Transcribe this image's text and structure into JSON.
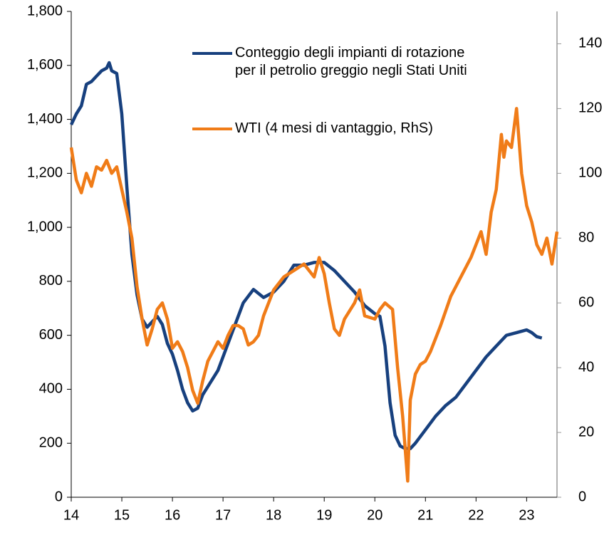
{
  "chart_data": {
    "type": "line",
    "xlim": [
      14,
      23.6
    ],
    "xticks": [
      14,
      15,
      16,
      17,
      18,
      19,
      20,
      21,
      22,
      23
    ],
    "ylim": [
      0,
      1800
    ],
    "yticks": [
      0,
      200,
      400,
      600,
      800,
      {
        "value": 1000,
        "label": "1,000"
      },
      {
        "value": 1200,
        "label": "1,200"
      },
      {
        "value": 1400,
        "label": "1,400"
      },
      {
        "value": 1600,
        "label": "1,600"
      },
      {
        "value": 1800,
        "label": "1,800"
      }
    ],
    "y2lim": [
      0,
      150
    ],
    "y2ticks": [
      0,
      20,
      40,
      60,
      80,
      100,
      120,
      140
    ],
    "legend": "top",
    "series": [
      {
        "name": "Conteggio degli impianti di rotazione per il petrolio greggio negli Stati Uniti",
        "color": "#17407e",
        "x": [
          14.0,
          14.1,
          14.2,
          14.3,
          14.4,
          14.5,
          14.6,
          14.7,
          14.75,
          14.8,
          14.9,
          15.0,
          15.1,
          15.2,
          15.3,
          15.4,
          15.5,
          15.6,
          15.7,
          15.8,
          15.9,
          16.0,
          16.1,
          16.2,
          16.3,
          16.4,
          16.5,
          16.6,
          16.7,
          16.8,
          16.9,
          17.0,
          17.2,
          17.4,
          17.6,
          17.8,
          18.0,
          18.2,
          18.4,
          18.6,
          18.8,
          19.0,
          19.2,
          19.4,
          19.6,
          19.8,
          20.0,
          20.1,
          20.2,
          20.3,
          20.4,
          20.5,
          20.6,
          20.7,
          20.8,
          21.0,
          21.2,
          21.4,
          21.6,
          21.8,
          22.0,
          22.2,
          22.4,
          22.6,
          22.8,
          23.0,
          23.1,
          23.2,
          23.3
        ],
        "values": [
          1380,
          1420,
          1450,
          1530,
          1540,
          1560,
          1580,
          1590,
          1610,
          1580,
          1570,
          1420,
          1150,
          900,
          750,
          660,
          630,
          650,
          670,
          640,
          570,
          530,
          470,
          400,
          350,
          320,
          330,
          380,
          410,
          440,
          470,
          520,
          620,
          720,
          770,
          740,
          760,
          800,
          860,
          860,
          870,
          870,
          840,
          800,
          760,
          710,
          680,
          670,
          560,
          350,
          230,
          190,
          180,
          180,
          200,
          250,
          300,
          340,
          370,
          420,
          470,
          520,
          560,
          600,
          610,
          620,
          610,
          595,
          590
        ]
      },
      {
        "name": "WTI (4 mesi di vantaggio, RhS)",
        "color": "#f07c18",
        "axis": "y2",
        "x": [
          14.0,
          14.1,
          14.2,
          14.3,
          14.4,
          14.5,
          14.6,
          14.7,
          14.8,
          14.9,
          15.0,
          15.1,
          15.2,
          15.3,
          15.4,
          15.5,
          15.6,
          15.7,
          15.8,
          15.9,
          16.0,
          16.1,
          16.2,
          16.3,
          16.4,
          16.5,
          16.6,
          16.7,
          16.8,
          16.9,
          17.0,
          17.1,
          17.2,
          17.3,
          17.4,
          17.5,
          17.6,
          17.7,
          17.8,
          17.9,
          18.0,
          18.2,
          18.4,
          18.6,
          18.8,
          18.9,
          19.0,
          19.1,
          19.2,
          19.3,
          19.4,
          19.6,
          19.7,
          19.8,
          20.0,
          20.1,
          20.2,
          20.35,
          20.45,
          20.55,
          20.65,
          20.7,
          20.8,
          20.9,
          21.0,
          21.1,
          21.3,
          21.5,
          21.7,
          21.9,
          22.0,
          22.1,
          22.2,
          22.3,
          22.4,
          22.5,
          22.55,
          22.6,
          22.7,
          22.8,
          22.9,
          23.0,
          23.1,
          23.2,
          23.3,
          23.4,
          23.5,
          23.6
        ],
        "values": [
          108,
          98,
          94,
          100,
          96,
          102,
          101,
          104,
          100,
          102,
          95,
          88,
          80,
          65,
          55,
          47,
          52,
          58,
          60,
          55,
          46,
          48,
          45,
          40,
          33,
          29,
          36,
          42,
          45,
          48,
          46,
          50,
          53,
          53,
          52,
          47,
          48,
          50,
          56,
          60,
          64,
          68,
          70,
          72,
          68,
          74,
          69,
          60,
          52,
          50,
          55,
          60,
          64,
          56,
          55,
          58,
          60,
          58,
          40,
          25,
          5,
          30,
          38,
          41,
          42,
          45,
          53,
          62,
          68,
          74,
          78,
          82,
          75,
          88,
          95,
          112,
          105,
          110,
          108,
          120,
          100,
          90,
          85,
          78,
          75,
          80,
          72,
          82
        ]
      }
    ]
  }
}
